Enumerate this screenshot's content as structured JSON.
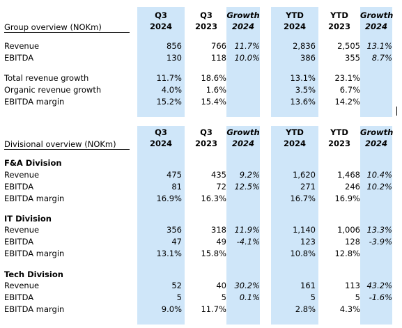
{
  "columns": {
    "c1": {
      "top": "Q3",
      "bottom": "2024"
    },
    "c2": {
      "top": "Q3",
      "bottom": "2023"
    },
    "c3": {
      "top": "Growth",
      "bottom": "2024"
    },
    "c4": {
      "top": "YTD",
      "bottom": "2024"
    },
    "c5": {
      "top": "YTD",
      "bottom": "2023"
    },
    "c6": {
      "top": "Growth",
      "bottom": "2024"
    }
  },
  "group": {
    "title": "Group overview (NOKm)",
    "revenue": {
      "label": "Revenue",
      "v": [
        "856",
        "766",
        "11.7%",
        "2,836",
        "2,505",
        "13.1%"
      ]
    },
    "ebitda": {
      "label": "EBITDA",
      "v": [
        "130",
        "118",
        "10.0%",
        "386",
        "355",
        "8.7%"
      ]
    },
    "total_growth": {
      "label": "Total revenue growth",
      "v": [
        "11.7%",
        "18.6%",
        "",
        "13.1%",
        "23.1%",
        ""
      ]
    },
    "organic_growth": {
      "label": "Organic revenue growth",
      "v": [
        "4.0%",
        "1.6%",
        "",
        "3.5%",
        "6.7%",
        ""
      ]
    },
    "margin": {
      "label": "EBITDA margin",
      "v": [
        "15.2%",
        "15.4%",
        "",
        "13.6%",
        "14.2%",
        ""
      ]
    }
  },
  "divisional": {
    "title": "Divisional overview (NOKm)",
    "fa": {
      "name": "F&A Division",
      "revenue": {
        "label": "Revenue",
        "v": [
          "475",
          "435",
          "9.2%",
          "1,620",
          "1,468",
          "10.4%"
        ]
      },
      "ebitda": {
        "label": "EBITDA",
        "v": [
          "81",
          "72",
          "12.5%",
          "271",
          "246",
          "10.2%"
        ]
      },
      "margin": {
        "label": "EBITDA margin",
        "v": [
          "16.9%",
          "16.3%",
          "",
          "16.7%",
          "16.9%",
          ""
        ]
      }
    },
    "it": {
      "name": "IT Division",
      "revenue": {
        "label": "Revenue",
        "v": [
          "356",
          "318",
          "11.9%",
          "1,140",
          "1,006",
          "13.3%"
        ]
      },
      "ebitda": {
        "label": "EBITDA",
        "v": [
          "47",
          "49",
          "-4.1%",
          "123",
          "128",
          "-3.9%"
        ]
      },
      "margin": {
        "label": "EBITDA margin",
        "v": [
          "13.1%",
          "15.8%",
          "",
          "10.8%",
          "12.8%",
          ""
        ]
      }
    },
    "tech": {
      "name": "Tech Division",
      "revenue": {
        "label": "Revenue",
        "v": [
          "52",
          "40",
          "30.2%",
          "161",
          "113",
          "43.2%"
        ]
      },
      "ebitda": {
        "label": "EBITDA",
        "v": [
          "5",
          "5",
          "0.1%",
          "5",
          "5",
          "-1.6%"
        ]
      },
      "margin": {
        "label": "EBITDA margin",
        "v": [
          "9.0%",
          "11.7%",
          "",
          "2.8%",
          "4.3%",
          ""
        ]
      }
    }
  }
}
